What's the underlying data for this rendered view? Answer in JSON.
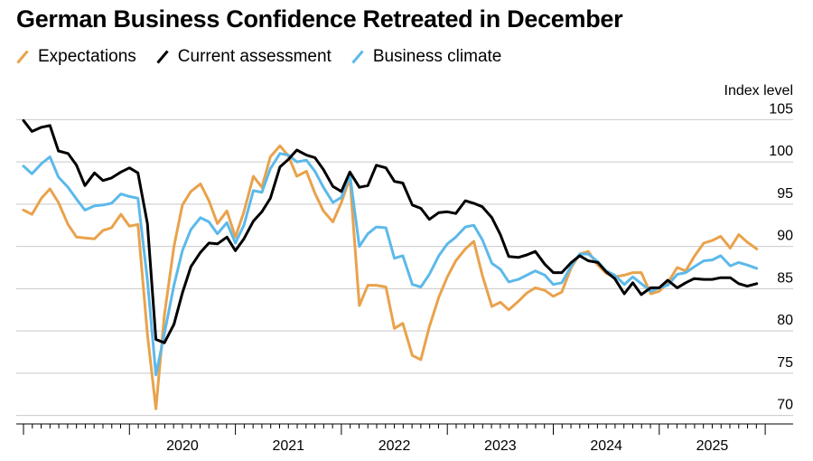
{
  "chart_data": {
    "type": "line",
    "title": "German Business Confidence Retreated in December",
    "ylabel": "Index level",
    "xlabel": "",
    "ylim": [
      69,
      106
    ],
    "xlim": [
      2019.0,
      2026.0
    ],
    "y_ticks": [
      "105",
      "100",
      "95",
      "90",
      "85",
      "80",
      "75",
      "70"
    ],
    "x_ticks": [
      "2020",
      "2021",
      "2022",
      "2023",
      "2024",
      "2025"
    ],
    "legend_position": "top-left",
    "series": [
      {
        "name": "Expectations",
        "color": "#e9a24c",
        "x": [
          2019.0,
          2019.08,
          2019.17,
          2019.25,
          2019.33,
          2019.42,
          2019.5,
          2019.58,
          2019.67,
          2019.75,
          2019.83,
          2019.92,
          2020.0,
          2020.08,
          2020.17,
          2020.25,
          2020.33,
          2020.42,
          2020.5,
          2020.58,
          2020.67,
          2020.75,
          2020.83,
          2020.92,
          2021.0,
          2021.08,
          2021.17,
          2021.25,
          2021.33,
          2021.42,
          2021.5,
          2021.58,
          2021.67,
          2021.75,
          2021.83,
          2021.92,
          2022.0,
          2022.08,
          2022.17,
          2022.25,
          2022.33,
          2022.42,
          2022.5,
          2022.58,
          2022.67,
          2022.75,
          2022.83,
          2022.92,
          2023.0,
          2023.08,
          2023.17,
          2023.25,
          2023.33,
          2023.42,
          2023.5,
          2023.58,
          2023.67,
          2023.75,
          2023.83,
          2023.92,
          2024.0,
          2024.08,
          2024.17,
          2024.25,
          2024.33,
          2024.42,
          2024.5,
          2024.58,
          2024.67,
          2024.75,
          2024.83,
          2024.92,
          2025.0,
          2025.08,
          2025.17,
          2025.25,
          2025.33,
          2025.42,
          2025.5,
          2025.58,
          2025.67,
          2025.75,
          2025.83,
          2025.92
        ],
        "values": [
          94.3,
          93.8,
          95.7,
          96.8,
          95.2,
          92.6,
          91.1,
          91.0,
          90.9,
          91.9,
          92.2,
          93.8,
          92.4,
          92.6,
          79.6,
          70.8,
          81.9,
          90.0,
          94.9,
          96.5,
          97.4,
          95.4,
          92.7,
          94.2,
          91.1,
          94.1,
          98.3,
          97.0,
          100.6,
          101.9,
          100.7,
          98.3,
          98.9,
          96.3,
          94.2,
          92.9,
          95.2,
          98.1,
          83.0,
          85.4,
          85.4,
          85.2,
          80.3,
          80.9,
          77.1,
          76.6,
          80.5,
          84.0,
          86.4,
          88.3,
          89.7,
          90.6,
          86.6,
          82.9,
          83.4,
          82.5,
          83.5,
          84.5,
          85.1,
          84.8,
          84.1,
          84.6,
          87.5,
          89.1,
          89.4,
          87.8,
          86.8,
          86.4,
          86.6,
          86.9,
          86.9,
          84.4,
          84.7,
          85.7,
          87.5,
          87.1,
          88.8,
          90.4,
          90.7,
          91.2,
          89.8,
          91.4,
          90.5,
          89.7
        ]
      },
      {
        "name": "Current assessment",
        "color": "#000000",
        "x": [
          2019.0,
          2019.08,
          2019.17,
          2019.25,
          2019.33,
          2019.42,
          2019.5,
          2019.58,
          2019.67,
          2019.75,
          2019.83,
          2019.92,
          2020.0,
          2020.08,
          2020.17,
          2020.25,
          2020.33,
          2020.42,
          2020.5,
          2020.58,
          2020.67,
          2020.75,
          2020.83,
          2020.92,
          2021.0,
          2021.08,
          2021.17,
          2021.25,
          2021.33,
          2021.42,
          2021.5,
          2021.58,
          2021.67,
          2021.75,
          2021.83,
          2021.92,
          2022.0,
          2022.08,
          2022.17,
          2022.25,
          2022.33,
          2022.42,
          2022.5,
          2022.58,
          2022.67,
          2022.75,
          2022.83,
          2022.92,
          2023.0,
          2023.08,
          2023.17,
          2023.25,
          2023.33,
          2023.42,
          2023.5,
          2023.58,
          2023.67,
          2023.75,
          2023.83,
          2023.92,
          2024.0,
          2024.08,
          2024.17,
          2024.25,
          2024.33,
          2024.42,
          2024.5,
          2024.58,
          2024.67,
          2024.75,
          2024.83,
          2024.92,
          2025.0,
          2025.08,
          2025.17,
          2025.25,
          2025.33,
          2025.42,
          2025.5,
          2025.58,
          2025.67,
          2025.75,
          2025.83,
          2025.92
        ],
        "values": [
          104.9,
          103.6,
          104.1,
          104.3,
          101.3,
          101.0,
          99.6,
          97.2,
          98.7,
          97.8,
          98.1,
          98.8,
          99.3,
          98.7,
          92.7,
          79.0,
          78.6,
          80.8,
          84.5,
          87.6,
          89.3,
          90.4,
          90.3,
          91.1,
          89.5,
          90.9,
          93.0,
          94.1,
          95.7,
          99.4,
          100.3,
          101.4,
          100.8,
          100.5,
          99.1,
          97.1,
          96.5,
          98.8,
          97.0,
          97.2,
          99.6,
          99.3,
          97.7,
          97.5,
          94.9,
          94.5,
          93.2,
          94.0,
          94.1,
          93.9,
          95.4,
          95.1,
          94.7,
          93.4,
          91.4,
          88.8,
          88.7,
          89.0,
          89.4,
          87.9,
          86.9,
          86.9,
          88.1,
          88.9,
          88.3,
          88.1,
          87.0,
          86.2,
          84.4,
          85.7,
          84.3,
          85.1,
          85.1,
          86.0,
          85.1,
          85.7,
          86.2,
          86.1,
          86.1,
          86.3,
          86.3,
          85.6,
          85.3,
          85.6
        ]
      },
      {
        "name": "Business climate",
        "color": "#5cb9ea",
        "x": [
          2019.0,
          2019.08,
          2019.17,
          2019.25,
          2019.33,
          2019.42,
          2019.5,
          2019.58,
          2019.67,
          2019.75,
          2019.83,
          2019.92,
          2020.0,
          2020.08,
          2020.17,
          2020.25,
          2020.33,
          2020.42,
          2020.5,
          2020.58,
          2020.67,
          2020.75,
          2020.83,
          2020.92,
          2021.0,
          2021.08,
          2021.17,
          2021.25,
          2021.33,
          2021.42,
          2021.5,
          2021.58,
          2021.67,
          2021.75,
          2021.83,
          2021.92,
          2022.0,
          2022.08,
          2022.17,
          2022.25,
          2022.33,
          2022.42,
          2022.5,
          2022.58,
          2022.67,
          2022.75,
          2022.83,
          2022.92,
          2023.0,
          2023.08,
          2023.17,
          2023.25,
          2023.33,
          2023.42,
          2023.5,
          2023.58,
          2023.67,
          2023.75,
          2023.83,
          2023.92,
          2024.0,
          2024.08,
          2024.17,
          2024.25,
          2024.33,
          2024.42,
          2024.5,
          2024.58,
          2024.67,
          2024.75,
          2024.83,
          2024.92,
          2025.0,
          2025.08,
          2025.17,
          2025.25,
          2025.33,
          2025.42,
          2025.5,
          2025.58,
          2025.67,
          2025.75,
          2025.83,
          2025.92
        ],
        "values": [
          99.5,
          98.6,
          99.8,
          100.6,
          98.2,
          97.0,
          95.6,
          94.3,
          94.8,
          94.9,
          95.1,
          96.2,
          95.9,
          95.7,
          86.0,
          74.8,
          79.7,
          85.4,
          89.5,
          92.0,
          93.4,
          92.9,
          91.5,
          92.8,
          90.4,
          92.5,
          96.6,
          96.4,
          99.2,
          101.0,
          100.8,
          100.0,
          100.2,
          98.9,
          97.0,
          95.2,
          95.8,
          98.5,
          90.0,
          91.5,
          92.3,
          92.2,
          88.6,
          88.9,
          85.5,
          85.2,
          86.7,
          88.9,
          90.3,
          91.1,
          92.3,
          92.5,
          90.8,
          88.0,
          87.3,
          85.8,
          86.1,
          86.6,
          87.1,
          86.6,
          85.5,
          85.7,
          87.7,
          89.1,
          89.1,
          88.2,
          87.1,
          86.6,
          85.5,
          86.4,
          85.6,
          84.7,
          85.1,
          85.4,
          86.7,
          86.9,
          87.6,
          88.3,
          88.4,
          88.9,
          87.7,
          88.1,
          87.8,
          87.4
        ]
      }
    ]
  }
}
